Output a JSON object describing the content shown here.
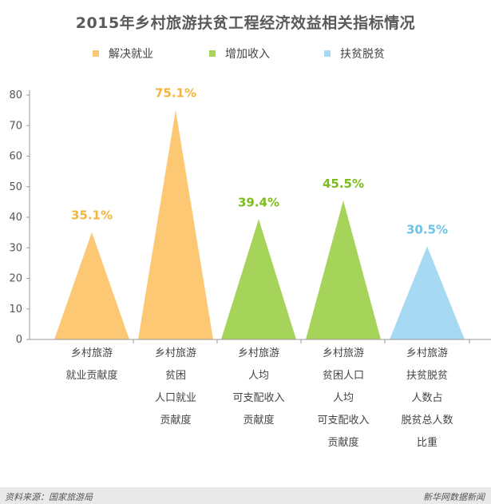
{
  "title": "2015年乡村旅游扶贫工程经济效益相关指标情况",
  "legend": [
    {
      "label": "解决就业",
      "color": "#fcc874"
    },
    {
      "label": "增加收入",
      "color": "#a6d35a"
    },
    {
      "label": "扶贫脱贫",
      "color": "#a7d9f2"
    }
  ],
  "footer": {
    "source": "资料来源：国家旅游局",
    "brand": "新华网数据新闻"
  },
  "chart_data": {
    "type": "bar",
    "shape": "triangle",
    "title": "2015年乡村旅游扶贫工程经济效益相关指标情况",
    "xlabel": "",
    "ylabel": "",
    "ylim": [
      0,
      80
    ],
    "yticks": [
      0,
      10,
      20,
      30,
      40,
      50,
      60,
      70,
      80
    ],
    "grid": false,
    "legend_position": "top",
    "categories": [
      [
        "乡村旅游",
        "就业贡献度"
      ],
      [
        "乡村旅游",
        "贫困",
        "人口就业",
        "贡献度"
      ],
      [
        "乡村旅游",
        "人均",
        "可支配收入",
        "贡献度"
      ],
      [
        "乡村旅游",
        "贫困人口",
        "人均",
        "可支配收入",
        "贡献度"
      ],
      [
        "乡村旅游",
        "扶贫脱贫",
        "人数占",
        "脱贫总人数",
        "比重"
      ]
    ],
    "values": [
      35.1,
      75.1,
      39.4,
      45.5,
      30.5
    ],
    "value_labels": [
      "35.1%",
      "75.1%",
      "39.4%",
      "45.5%",
      "30.5%"
    ],
    "series_index": [
      0,
      0,
      1,
      1,
      2
    ],
    "label_colors": [
      "#f5b53c",
      "#f5b53c",
      "#7dbb1e",
      "#7dbb1e",
      "#6cc3ea"
    ]
  }
}
